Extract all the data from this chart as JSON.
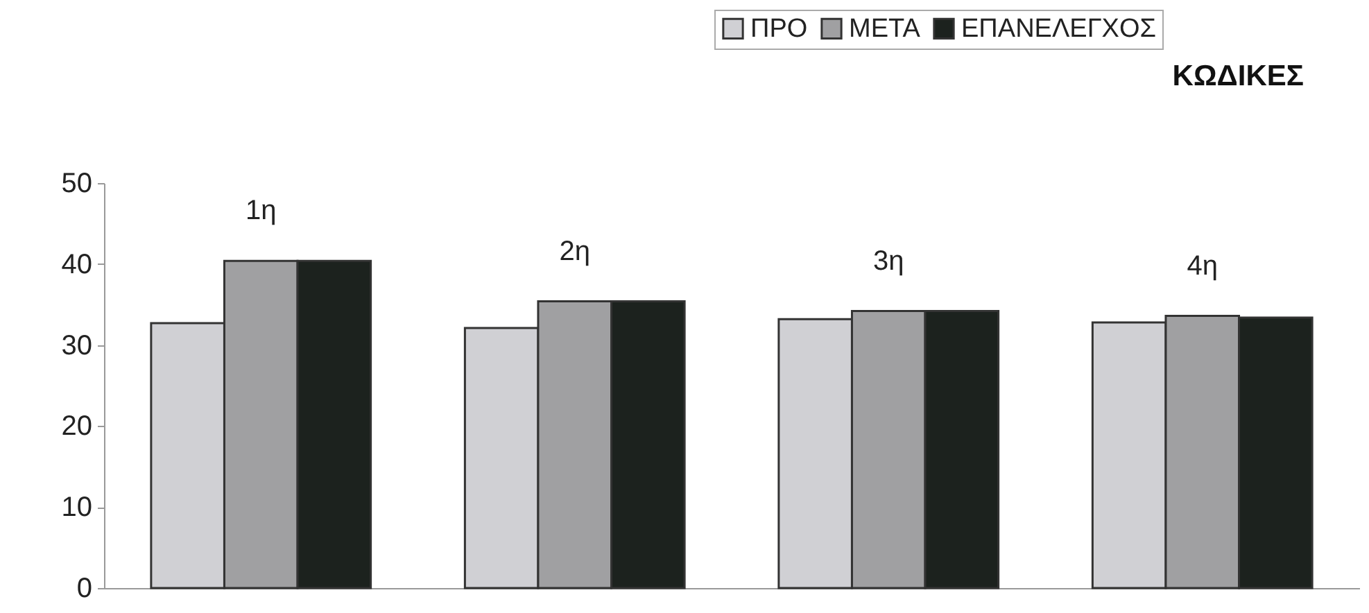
{
  "chart_data": {
    "type": "bar",
    "title": "ΚΩΔΙΚΕΣ",
    "categories": [
      "1η",
      "2η",
      "3η",
      "4η"
    ],
    "series": [
      {
        "name": "ΠΡΟ",
        "color": "#d0d0d4",
        "values": [
          32.7,
          32.1,
          33.2,
          32.8
        ]
      },
      {
        "name": "ΜΕΤΑ",
        "color": "#a0a0a2",
        "values": [
          40.4,
          35.4,
          34.2,
          33.6
        ]
      },
      {
        "name": "ΕΠΑΝΕΛΕΓΧΟΣ",
        "color": "#1c221e",
        "values": [
          40.4,
          35.4,
          34.2,
          33.4
        ]
      }
    ],
    "ylim": [
      0,
      50
    ],
    "yticks": [
      0,
      10,
      20,
      30,
      40,
      50
    ],
    "legend": "top right"
  }
}
